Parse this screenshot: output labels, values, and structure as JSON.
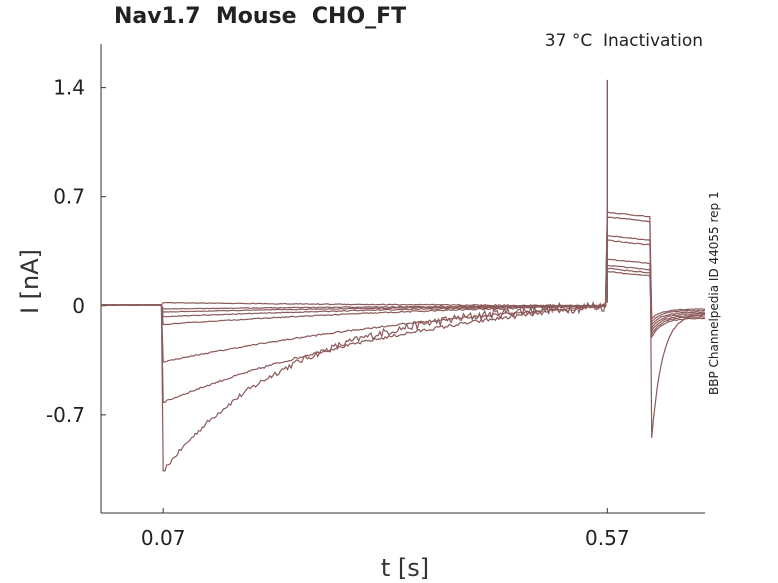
{
  "chart_data": {
    "type": "line",
    "title": "Nav1.7  Mouse  CHO_FT",
    "subtitle": "37 °C  Inactivation",
    "side_note": "BBP Channelpedia ID 44055 rep 1",
    "xlabel": "t [s]",
    "ylabel": "I [nA]",
    "xlim": [
      -0.0,
      0.68
    ],
    "ylim": [
      -1.33,
      1.68
    ],
    "xticks": [
      {
        "value": 0.07,
        "label": "0.07"
      },
      {
        "value": 0.57,
        "label": "0.57"
      }
    ],
    "yticks": [
      {
        "value": 1.4,
        "label": "1.4"
      },
      {
        "value": 0.7,
        "label": "0.7"
      },
      {
        "value": 0,
        "label": "0"
      },
      {
        "value": -0.7,
        "label": "-0.7"
      }
    ],
    "grid": false,
    "line_color": "#8b5a5a",
    "series": [
      {
        "peak": -1.06,
        "recovery": 0.6,
        "post": -0.85,
        "tail": -0.05,
        "tau": 0.3,
        "noise": 0.025
      },
      {
        "peak": -0.62,
        "recovery": 0.57,
        "post": -0.08,
        "tail": -0.02,
        "tau": 0.7,
        "noise": 0.01
      },
      {
        "peak": -0.36,
        "recovery": 0.45,
        "post": -0.1,
        "tail": -0.03,
        "tau": 0.9,
        "noise": 0.006
      },
      {
        "peak": -0.12,
        "recovery": 0.42,
        "post": -0.12,
        "tail": -0.04,
        "tau": 0.9,
        "noise": 0.004
      },
      {
        "peak": -0.07,
        "recovery": 0.3,
        "post": -0.14,
        "tail": -0.05,
        "tau": 1.0,
        "noise": 0.003
      },
      {
        "peak": -0.04,
        "recovery": 0.26,
        "post": -0.16,
        "tail": -0.06,
        "tau": 1.0,
        "noise": 0.003
      },
      {
        "peak": -0.02,
        "recovery": 0.24,
        "post": -0.18,
        "tail": -0.07,
        "tau": 1.0,
        "noise": 0.003
      },
      {
        "peak": 0.02,
        "recovery": 0.22,
        "post": -0.2,
        "tail": -0.08,
        "tau": 1.0,
        "noise": 0.003
      }
    ],
    "spike_peak": 1.45
  }
}
